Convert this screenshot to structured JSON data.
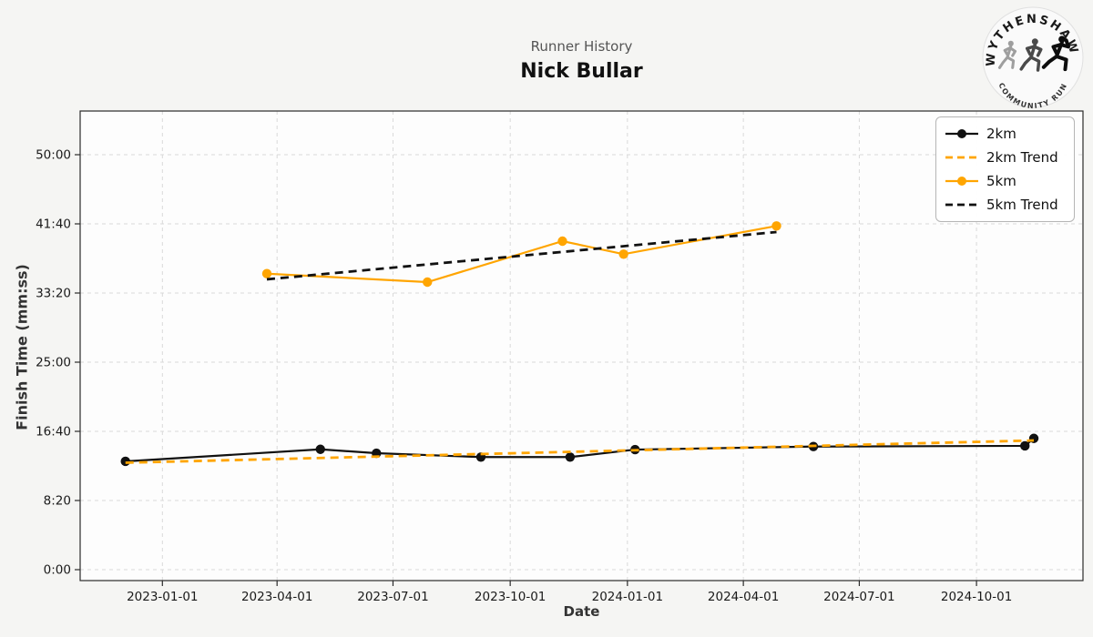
{
  "header": {
    "subtitle": "Runner History",
    "runner_name": "Nick Bullar"
  },
  "logo": {
    "top_text": "WYTHENSHAWE",
    "bottom_text": "COMMUNITY RUN"
  },
  "colors": {
    "accent_orange": "#FFA500",
    "series_black": "#111111",
    "grid": "#d9d9d9",
    "figure_bg": "#f5f5f3",
    "plot_bg": "#fdfdfd",
    "spine": "#2b2b2b",
    "subtitle_gray": "#555555"
  },
  "chart_data": {
    "type": "line",
    "title": "Runner History",
    "subtitle": "Nick Bullar",
    "xlabel": "Date",
    "ylabel": "Finish Time (mm:ss)",
    "grid": true,
    "legend_position": "upper right",
    "x_ticks": [
      "2023-01-01",
      "2023-04-01",
      "2023-07-01",
      "2023-10-01",
      "2024-01-01",
      "2024-04-01",
      "2024-07-01",
      "2024-10-01"
    ],
    "y_ticks": [
      {
        "label": "0:00",
        "seconds": 0
      },
      {
        "label": "8:20",
        "seconds": 500
      },
      {
        "label": "16:40",
        "seconds": 1000
      },
      {
        "label": "25:00",
        "seconds": 1500
      },
      {
        "label": "33:20",
        "seconds": 2000
      },
      {
        "label": "41:40",
        "seconds": 2500
      },
      {
        "label": "50:00",
        "seconds": 3000
      }
    ],
    "x_range": [
      "2022-10-28",
      "2024-12-23"
    ],
    "ylim_seconds": [
      -80,
      3316
    ],
    "legend": [
      "2km",
      "2km Trend",
      "5km",
      "5km Trend"
    ],
    "series": [
      {
        "name": "2km",
        "color": "#111111",
        "style": "solid",
        "marker": true,
        "points": [
          {
            "date": "2022-12-03",
            "time": "13:03",
            "seconds": 783
          },
          {
            "date": "2023-05-05",
            "time": "14:30",
            "seconds": 870
          },
          {
            "date": "2023-06-18",
            "time": "14:02",
            "seconds": 842
          },
          {
            "date": "2023-09-08",
            "time": "13:34",
            "seconds": 814
          },
          {
            "date": "2023-11-17",
            "time": "13:34",
            "seconds": 814
          },
          {
            "date": "2024-01-07",
            "time": "14:28",
            "seconds": 868
          },
          {
            "date": "2024-05-26",
            "time": "14:50",
            "seconds": 890
          },
          {
            "date": "2024-11-08",
            "time": "14:55",
            "seconds": 895
          },
          {
            "date": "2024-11-15",
            "time": "15:49",
            "seconds": 949
          }
        ]
      },
      {
        "name": "2km Trend",
        "color": "#FFA500",
        "style": "dashed",
        "marker": false,
        "points": [
          {
            "date": "2022-12-03",
            "time": "12:53",
            "seconds": 773
          },
          {
            "date": "2024-11-15",
            "time": "15:34",
            "seconds": 934
          }
        ]
      },
      {
        "name": "5km",
        "color": "#FFA500",
        "style": "solid",
        "marker": true,
        "points": [
          {
            "date": "2023-03-24",
            "time": "35:40",
            "seconds": 2140
          },
          {
            "date": "2023-07-28",
            "time": "34:39",
            "seconds": 2079
          },
          {
            "date": "2023-11-11",
            "time": "39:35",
            "seconds": 2375
          },
          {
            "date": "2023-12-29",
            "time": "38:01",
            "seconds": 2281
          },
          {
            "date": "2024-04-27",
            "time": "41:25",
            "seconds": 2485
          }
        ]
      },
      {
        "name": "5km Trend",
        "color": "#111111",
        "style": "dashed",
        "marker": false,
        "points": [
          {
            "date": "2023-03-24",
            "time": "34:59",
            "seconds": 2099
          },
          {
            "date": "2024-04-27",
            "time": "40:41",
            "seconds": 2441
          }
        ]
      }
    ]
  }
}
